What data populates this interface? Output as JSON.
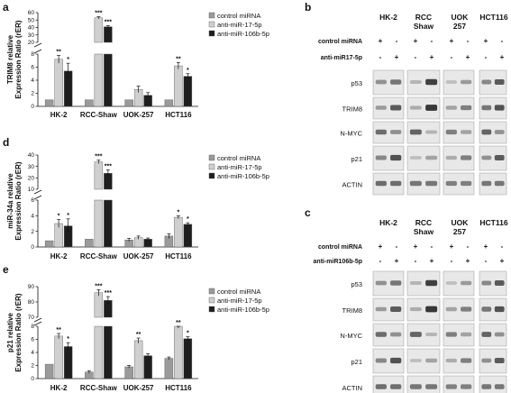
{
  "legend": [
    "control miRNA",
    "anti-miR-17-5p",
    "anti-miR-106b-5p"
  ],
  "series_colors": [
    "#9a9a9a",
    "#cfcfcf",
    "#1e1e1e"
  ],
  "chart_data": [
    {
      "type": "bar",
      "panel": "a",
      "ylabel": "TRIM8 relative Expression Ratio (rER)",
      "categories": [
        "HK-2",
        "RCC-Shaw",
        "UOK-257",
        "HCT116"
      ],
      "axis_break": true,
      "lower_range": [
        0,
        8
      ],
      "upper_range": [
        20,
        60
      ],
      "lower_ticks": [
        0,
        2,
        4,
        6,
        8
      ],
      "upper_ticks": [
        20,
        30,
        40,
        50,
        60
      ],
      "series": [
        {
          "name": "control miRNA",
          "values": [
            1,
            1,
            1,
            1
          ],
          "errors": [
            0,
            0,
            0,
            0
          ],
          "stars": [
            "",
            "",
            "",
            ""
          ]
        },
        {
          "name": "anti-miR-17-5p",
          "values": [
            7.2,
            53,
            2.6,
            6.2
          ],
          "errors": [
            0.6,
            1.5,
            0.5,
            0.5
          ],
          "stars": [
            "**",
            "***",
            "",
            "**"
          ]
        },
        {
          "name": "anti-miR-106b-5p",
          "values": [
            5.4,
            41,
            1.7,
            4.6
          ],
          "errors": [
            1.2,
            1.5,
            0.4,
            0.4
          ],
          "stars": [
            "*",
            "***",
            "",
            "*"
          ]
        }
      ]
    },
    {
      "type": "bar",
      "panel": "d",
      "ylabel": "miR-34a relative Expression Ratio (rER)",
      "categories": [
        "HK-2",
        "RCC-Shaw",
        "UOK-257",
        "HCT116"
      ],
      "axis_break": true,
      "lower_range": [
        0,
        6
      ],
      "upper_range": [
        10,
        40
      ],
      "lower_ticks": [
        0,
        2,
        4,
        6
      ],
      "upper_ticks": [
        10,
        20,
        30,
        40
      ],
      "series": [
        {
          "name": "control miRNA",
          "values": [
            0.8,
            1,
            0.9,
            1.4
          ],
          "errors": [
            0,
            0,
            0.2,
            0.3
          ],
          "stars": [
            "",
            "",
            "",
            ""
          ]
        },
        {
          "name": "anti-miR-17-5p",
          "values": [
            3,
            34,
            1.2,
            3.8
          ],
          "errors": [
            0.5,
            1.5,
            0.2,
            0.2
          ],
          "stars": [
            "*",
            "***",
            "",
            "*"
          ]
        },
        {
          "name": "anti-miR-106b-5p",
          "values": [
            2.7,
            24,
            1,
            2.9
          ],
          "errors": [
            0.9,
            3,
            0.15,
            0.2
          ],
          "stars": [
            "*",
            "***",
            "",
            "*"
          ]
        }
      ]
    },
    {
      "type": "bar",
      "panel": "e",
      "ylabel": "p21 relative Expression Ratio (rER)",
      "categories": [
        "HK-2",
        "RCC-Shaw",
        "UOK-257",
        "HCT116"
      ],
      "axis_break": true,
      "lower_range": [
        0,
        8
      ],
      "upper_range": [
        70,
        90
      ],
      "lower_ticks": [
        0,
        2,
        4,
        6,
        8
      ],
      "upper_ticks": [
        70,
        80,
        90
      ],
      "series": [
        {
          "name": "control miRNA",
          "values": [
            2.2,
            1,
            1.8,
            3.1
          ],
          "errors": [
            0,
            0.2,
            0.2,
            0.2
          ],
          "stars": [
            "",
            "",
            "",
            ""
          ]
        },
        {
          "name": "anti-miR-17-5p",
          "values": [
            6.5,
            86,
            5.8,
            8
          ],
          "errors": [
            0.4,
            2,
            0.4,
            0.3
          ],
          "stars": [
            "**",
            "***",
            "**",
            "**"
          ]
        },
        {
          "name": "anti-miR-106b-5p",
          "values": [
            4.9,
            81,
            3.5,
            6.1
          ],
          "errors": [
            0.6,
            2.5,
            0.3,
            0.3
          ],
          "stars": [
            "*",
            "***",
            "",
            "*"
          ]
        }
      ]
    }
  ],
  "blots": [
    {
      "panel": "b",
      "cell_lines": [
        "HK-2",
        "RCC Shaw",
        "UOK 257",
        "HCT116"
      ],
      "row_labels": [
        "control miRNA",
        "anti-miR17-5p"
      ],
      "signs": [
        [
          "+",
          "-"
        ],
        [
          "-",
          "+"
        ]
      ],
      "proteins": [
        "p53",
        "TRIM8",
        "N-MYC",
        "p21",
        "ACTIN"
      ]
    },
    {
      "panel": "c",
      "cell_lines": [
        "HK-2",
        "RCC Shaw",
        "UOK 257",
        "HCT116"
      ],
      "row_labels": [
        "control miRNA",
        "anti-miR106b-5p"
      ],
      "signs": [
        [
          "+",
          "-"
        ],
        [
          "-",
          "+"
        ]
      ],
      "proteins": [
        "p53",
        "TRIM8",
        "N-MYC",
        "p21",
        "ACTIN"
      ]
    }
  ]
}
